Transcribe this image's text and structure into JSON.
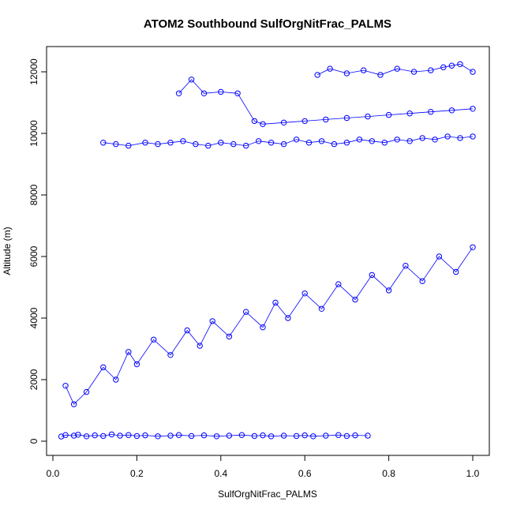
{
  "chart_data": {
    "type": "line",
    "title": "ATOM2 Southbound SulfOrgNitFrac_PALMS",
    "xlabel": "SulfOrgNitFrac_PALMS",
    "ylabel": "Altitude (m)",
    "xlim": [
      0.0,
      1.0
    ],
    "ylim": [
      0,
      12300
    ],
    "x_ticks": [
      0.0,
      0.2,
      0.4,
      0.6,
      0.8,
      1.0
    ],
    "x_tick_labels": [
      "0.0",
      "0.2",
      "0.4",
      "0.6",
      "0.8",
      "1.0"
    ],
    "y_ticks": [
      0,
      2000,
      4000,
      6000,
      8000,
      10000,
      12000
    ],
    "y_tick_labels": [
      "0",
      "2000",
      "4000",
      "6000",
      "8000",
      "10000",
      "12000"
    ],
    "grid": false,
    "legend": "none",
    "marker": "open-circle",
    "series_color": "#0000ff",
    "series": [
      {
        "x": [
          0.02,
          0.03,
          0.05,
          0.06,
          0.08,
          0.1,
          0.12,
          0.14,
          0.16,
          0.18,
          0.2,
          0.22,
          0.25,
          0.28,
          0.3,
          0.33,
          0.36,
          0.39,
          0.42,
          0.45,
          0.48,
          0.5,
          0.52,
          0.55,
          0.58,
          0.6,
          0.62,
          0.65,
          0.68,
          0.7,
          0.72,
          0.75
        ],
        "y": [
          150,
          200,
          180,
          210,
          160,
          190,
          170,
          220,
          180,
          200,
          170,
          190,
          160,
          180,
          200,
          170,
          190,
          160,
          180,
          200,
          170,
          190,
          160,
          180,
          170,
          190,
          160,
          180,
          200,
          170,
          190,
          180
        ]
      },
      {
        "x": [
          0.03,
          0.05,
          0.08,
          0.12,
          0.15,
          0.18,
          0.2,
          0.24,
          0.28,
          0.32,
          0.35,
          0.38,
          0.42,
          0.46,
          0.5,
          0.53,
          0.56,
          0.6,
          0.64,
          0.68,
          0.72,
          0.76,
          0.8,
          0.84,
          0.88,
          0.92,
          0.96,
          1.0
        ],
        "y": [
          1800,
          1200,
          1600,
          2400,
          2000,
          2900,
          2500,
          3300,
          2800,
          3600,
          3100,
          3900,
          3400,
          4200,
          3700,
          4500,
          4000,
          4800,
          4300,
          5100,
          4600,
          5400,
          4900,
          5700,
          5200,
          6000,
          5500,
          6300
        ]
      },
      {
        "x": [
          0.12,
          0.15,
          0.18,
          0.22,
          0.25,
          0.28,
          0.31,
          0.34,
          0.37,
          0.4,
          0.43,
          0.46,
          0.49,
          0.52,
          0.55,
          0.58,
          0.61,
          0.64,
          0.67,
          0.7,
          0.73,
          0.76,
          0.79,
          0.82,
          0.85,
          0.88,
          0.91,
          0.94,
          0.97,
          1.0
        ],
        "y": [
          9700,
          9650,
          9600,
          9700,
          9650,
          9700,
          9750,
          9650,
          9600,
          9700,
          9650,
          9600,
          9750,
          9700,
          9650,
          9800,
          9700,
          9750,
          9650,
          9700,
          9800,
          9750,
          9700,
          9800,
          9750,
          9850,
          9800,
          9900,
          9850,
          9900
        ]
      },
      {
        "x": [
          0.3,
          0.33,
          0.36,
          0.4,
          0.44,
          0.48,
          0.5,
          0.55,
          0.6,
          0.65,
          0.7,
          0.75,
          0.8,
          0.85,
          0.9,
          0.95,
          1.0
        ],
        "y": [
          11300,
          11750,
          11300,
          11350,
          11300,
          10400,
          10300,
          10350,
          10400,
          10450,
          10500,
          10550,
          10600,
          10650,
          10700,
          10750,
          10800
        ]
      },
      {
        "x": [
          0.63,
          0.66,
          0.7,
          0.74,
          0.78,
          0.82,
          0.86,
          0.9,
          0.93,
          0.95,
          0.97,
          1.0
        ],
        "y": [
          11900,
          12100,
          11950,
          12050,
          11900,
          12100,
          12000,
          12050,
          12150,
          12200,
          12250,
          12000
        ]
      }
    ]
  }
}
